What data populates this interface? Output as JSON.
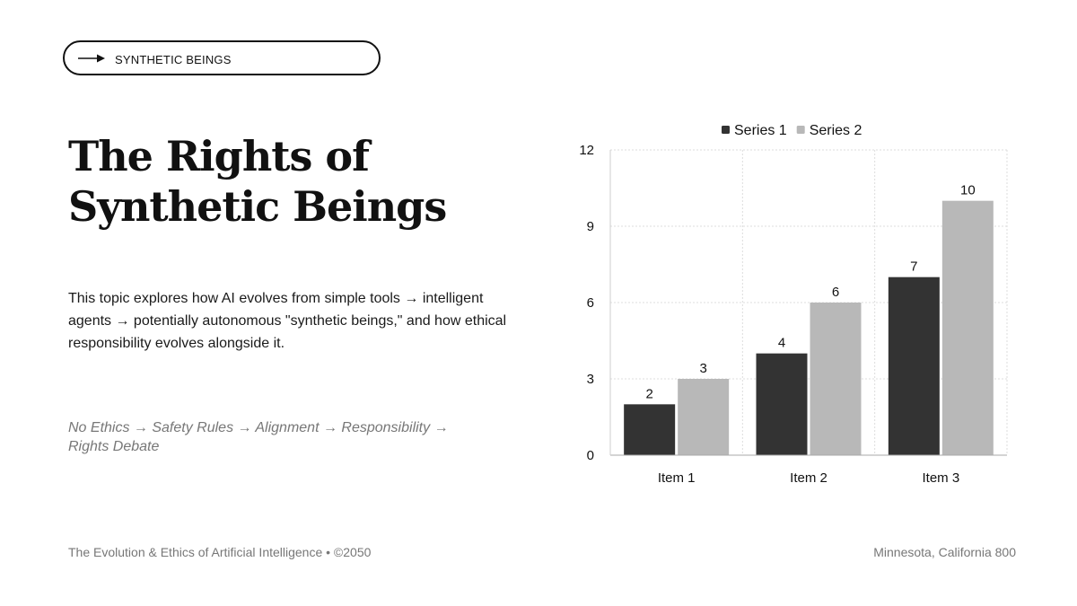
{
  "tag": {
    "label": "SYNTHETIC BEINGS",
    "icon": "arrow-right-icon"
  },
  "heading": {
    "title": "The Rights of Synthetic Beings"
  },
  "body": {
    "description": "This topic explores how AI evolves from simple tools → intelligent agents → potentially autonomous \"synthetic beings,\" and how ethical responsibility evolves alongside it.",
    "flow": "No Ethics → Safety Rules → Alignment → Responsibility → Rights Debate"
  },
  "footer": {
    "left": "The Evolution & Ethics of Artificial Intelligence • ©2050",
    "right": "Minnesota, California 800"
  },
  "chart_data": {
    "type": "bar",
    "categories": [
      "Item 1",
      "Item 2",
      "Item 3"
    ],
    "series": [
      {
        "name": "Series 1",
        "values": [
          2,
          4,
          7
        ],
        "color": "#333333"
      },
      {
        "name": "Series 2",
        "values": [
          3,
          6,
          10
        ],
        "color": "#b8b8b8"
      }
    ],
    "yticks": [
      "0",
      "3",
      "6",
      "9",
      "12"
    ],
    "ylim": [
      0,
      12
    ],
    "grid": true,
    "legend": "top-center",
    "data_labels": true
  }
}
